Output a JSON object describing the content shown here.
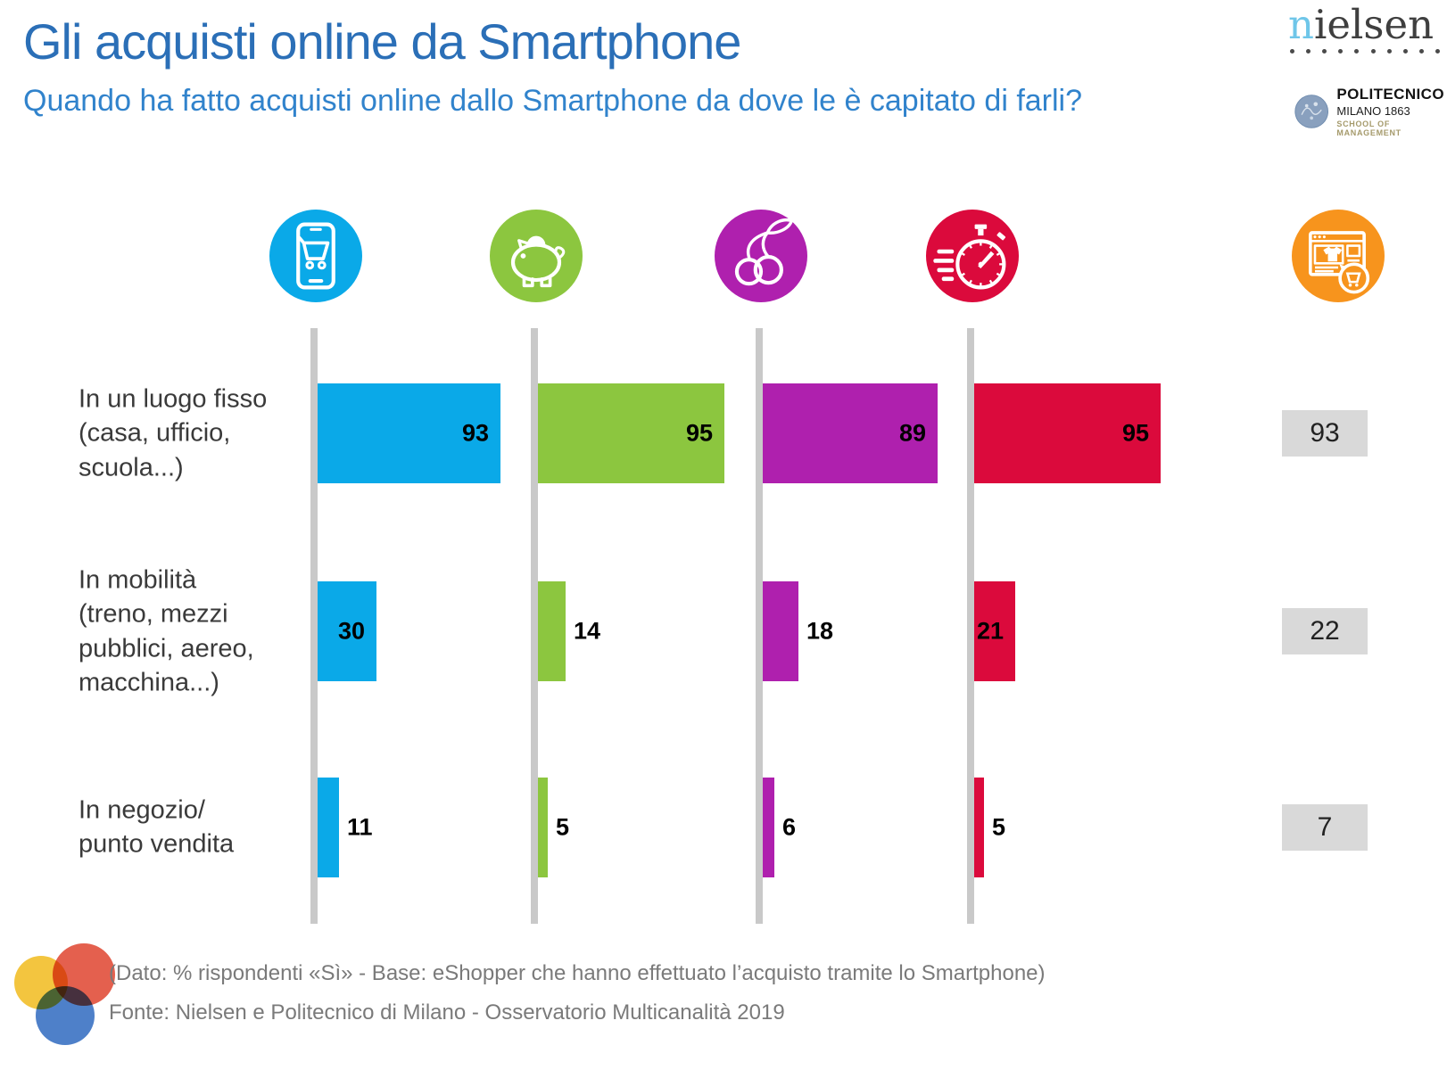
{
  "header": {
    "title": "Gli acquisti online da Smartphone",
    "subtitle": "Quando ha fatto acquisti online dallo Smartphone da dove le è capitato di farli?"
  },
  "logos": {
    "nielsen_first": "n",
    "nielsen_rest": "ielsen",
    "polimi_line1": "POLITECNICO",
    "polimi_line2": "MILANO 1863",
    "polimi_line3": "SCHOOL OF MANAGEMENT"
  },
  "chart_data": {
    "type": "bar",
    "orientation": "horizontal",
    "xlim": [
      0,
      100
    ],
    "grid": false,
    "categories": [
      "In un luogo fisso\n(casa, ufficio,\nscuola...)",
      "In mobilità\n(treno, mezzi\npubblici, aereo,\nmacchina...)",
      "In negozio/\npunto vendita"
    ],
    "series": [
      {
        "name": "smartphone-cart",
        "icon": "smartphone-cart",
        "color": "#0AA9E8",
        "values": [
          93,
          30,
          11
        ]
      },
      {
        "name": "piggy-bank",
        "icon": "piggy-bank",
        "color": "#8CC63F",
        "values": [
          95,
          14,
          5
        ]
      },
      {
        "name": "cherries",
        "icon": "cherries",
        "color": "#AF20AE",
        "values": [
          89,
          18,
          6
        ]
      },
      {
        "name": "stopwatch",
        "icon": "stopwatch",
        "color": "#DB0A3C",
        "values": [
          95,
          21,
          5
        ]
      }
    ],
    "totals": {
      "name": "totale",
      "icon": "browser-cart",
      "color": "#F7941D",
      "box_color": "#D9D9D9",
      "values": [
        93,
        22,
        7
      ]
    }
  },
  "footer": {
    "note": "(Dato: % rispondenti «Sì» - Base: eShopper che hanno effettuato l’acquisto tramite lo Smartphone)",
    "source": "Fonte: Nielsen e Politecnico di Milano - Osservatorio Multicanalità 2019"
  }
}
